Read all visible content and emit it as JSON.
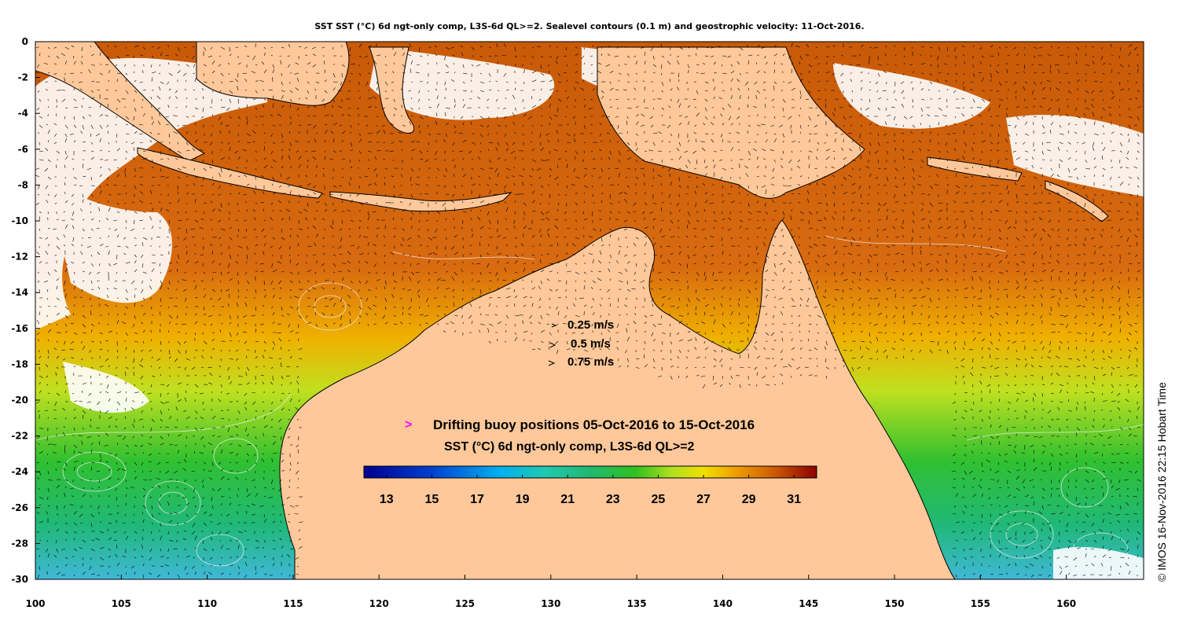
{
  "title": "SST SST (°C) 6d ngt-only comp, L3S-6d QL>=2. Sealevel contours (0.1 m) and geostrophic velocity: 11-Oct-2016.",
  "axes": {
    "x_ticks": [
      "100",
      "105",
      "110",
      "115",
      "120",
      "125",
      "130",
      "135",
      "140",
      "145",
      "150",
      "155",
      "160"
    ],
    "y_ticks": [
      "0",
      "-2",
      "-4",
      "-6",
      "-8",
      "-10",
      "-12",
      "-14",
      "-16",
      "-18",
      "-20",
      "-22",
      "-24",
      "-26",
      "-28",
      "-30"
    ],
    "x_range_lon": [
      100,
      164.5
    ],
    "y_range_lat": [
      -30,
      0
    ]
  },
  "velocity_legend": [
    {
      "label": "0.25 m/s",
      "speed": 0.25
    },
    {
      "label": "0.5 m/s",
      "speed": 0.5
    },
    {
      "label": "0.75 m/s",
      "speed": 0.75
    }
  ],
  "buoy_legend": {
    "symbol": ">",
    "symbol_color": "#ff00ff",
    "label": "Drifting buoy positions 05-Oct-2016 to 15-Oct-2016"
  },
  "colorbar": {
    "title": "SST (°C) 6d ngt-only comp, L3S-6d QL>=2",
    "min": 12,
    "max": 32,
    "tick_labels": [
      "13",
      "15",
      "17",
      "19",
      "21",
      "23",
      "25",
      "27",
      "29",
      "31"
    ]
  },
  "credit": "© IMOS 16-Nov-2016 22:15 Hobart Time",
  "colors": {
    "land": "#fec89a",
    "no_data": "#ffffff",
    "arrow": "#000000",
    "contour": "#f0f0f0"
  }
}
